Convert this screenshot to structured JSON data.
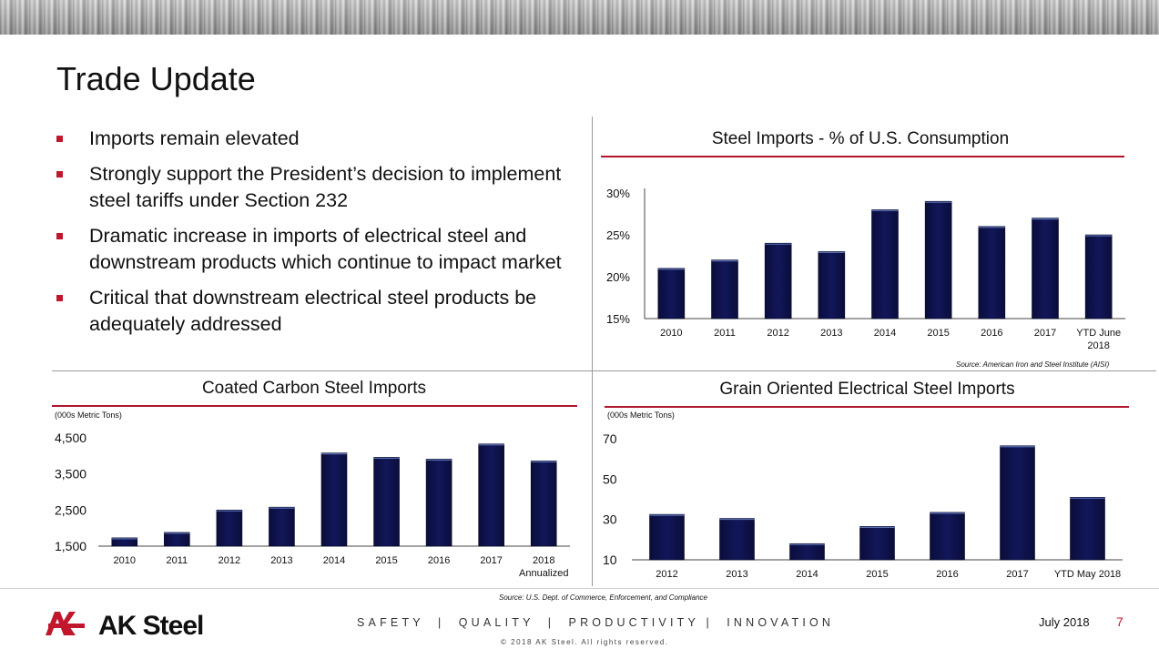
{
  "page": {
    "title": "Trade Update",
    "bullets": [
      "Imports remain elevated",
      "Strongly support the President’s decision to implement steel tariffs under Section 232",
      "Dramatic increase in imports of electrical steel and downstream products which continue to impact market",
      "Critical that downstream electrical steel products be adequately addressed"
    ],
    "footer": {
      "brand": "AK Steel",
      "tagline": "SAFETY  |  QUALITY  |  PRODUCTIVITY |  INNOVATION",
      "copyright": "© 2018 AK Steel.  All rights reserved.",
      "date": "July 2018",
      "page_number": "7"
    },
    "bottom_source": "Source: U.S. Dept. of Commerce, Enforcement, and Compliance"
  },
  "colors": {
    "bar": "#12175a",
    "accent_red": "#b0152b",
    "bullet_red": "#c0172d"
  },
  "chart_data": [
    {
      "type": "bar",
      "title": "Steel Imports - % of U.S. Consumption",
      "categories": [
        "2010",
        "2011",
        "2012",
        "2013",
        "2014",
        "2015",
        "2016",
        "2017",
        "YTD June 2018"
      ],
      "values": [
        21,
        22,
        24,
        23,
        28,
        29,
        26,
        27,
        25
      ],
      "unit": "%",
      "yticks": [
        "30%",
        "25%",
        "20%",
        "15%"
      ],
      "ylim": [
        15,
        30
      ],
      "source": "Source: American Iron and Steel Institute (AISI)",
      "grid": false
    },
    {
      "type": "bar",
      "title": "Coated Carbon Steel Imports",
      "unit_label": "(000s Metric Tons)",
      "categories": [
        "2010",
        "2011",
        "2012",
        "2013",
        "2014",
        "2015",
        "2016",
        "2017",
        "2018 Annualized"
      ],
      "values": [
        1730,
        1880,
        2500,
        2580,
        4080,
        3960,
        3910,
        4330,
        3860
      ],
      "yticks": [
        "4,500",
        "3,500",
        "2,500",
        "1,500"
      ],
      "ylim": [
        1500,
        4500
      ],
      "grid": false
    },
    {
      "type": "bar",
      "title": "Grain Oriented Electrical Steel Imports",
      "unit_label": "(000s Metric Tons)",
      "categories": [
        "2012",
        "2013",
        "2014",
        "2015",
        "2016",
        "2017",
        "YTD May 2018"
      ],
      "values": [
        32.5,
        30.5,
        18,
        26.5,
        33.5,
        66.5,
        41
      ],
      "yticks": [
        "70",
        "50",
        "30",
        "10"
      ],
      "ylim": [
        10,
        70
      ],
      "grid": false
    }
  ]
}
